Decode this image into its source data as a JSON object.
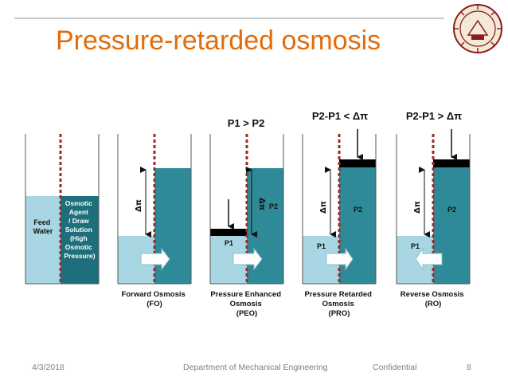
{
  "slide": {
    "title": "Pressure-retarded osmosis",
    "footer": {
      "date": "4/3/2018",
      "department": "Department of Mechanical Engineering",
      "confidential": "Confidential",
      "page": "8"
    }
  },
  "colors": {
    "title": "#e36c0a",
    "feed_water": "#a9d6e3",
    "draw_solution": "#2e8a98",
    "membrane": "#9b2a2a",
    "piston": "#000000",
    "dark_panel": "#1e6f7c"
  },
  "diagram": {
    "panels": [
      {
        "caption": [
          "",
          ""
        ],
        "header": "",
        "left_label": [
          "Feed",
          "Water"
        ],
        "right_label": [
          "Osmotic",
          "Agent",
          "/ Draw",
          "Solution",
          "(High",
          "Osmotic",
          "Pressure)"
        ]
      },
      {
        "caption": [
          "Forward Osmosis",
          "(FO)"
        ],
        "header": "",
        "delta_pi": "Δπ",
        "p_left": "",
        "p_right": ""
      },
      {
        "caption": [
          "Pressure Enhanced",
          "Osmosis",
          "(PEO)"
        ],
        "header": "P1 > P2",
        "delta_pi": "Δπ",
        "p_left": "P1",
        "p_right": "P2"
      },
      {
        "caption": [
          "Pressure Retarded",
          "Osmosis",
          "(PRO)"
        ],
        "header": "P2-P1 < Δπ",
        "delta_pi": "Δπ",
        "p_left": "P1",
        "p_right": "P2"
      },
      {
        "caption": [
          "Reverse Osmosis",
          "(RO)"
        ],
        "header": "P2-P1 > Δπ",
        "delta_pi": "Δπ",
        "p_left": "P1",
        "p_right": "P2"
      }
    ]
  }
}
